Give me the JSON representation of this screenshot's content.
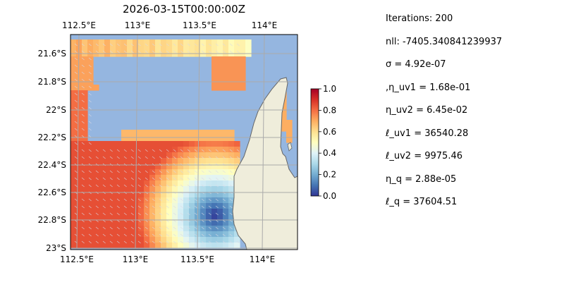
{
  "title": "2026-03-15T00:00:00Z",
  "map": {
    "lon_ticks": [
      "112.5°E",
      "113°E",
      "113.5°E",
      "114°E"
    ],
    "lat_ticks": [
      "21.6°S",
      "21.8°S",
      "22°S",
      "22.2°S",
      "22.4°S",
      "22.6°S",
      "22.8°S",
      "23°S"
    ],
    "colors": {
      "ocean": "#95b6e0",
      "land": "#efeddb",
      "coast": "#666666",
      "grid": "#aaaaaa"
    }
  },
  "colorbar": {
    "ticks": [
      "0.0",
      "0.2",
      "0.4",
      "0.6",
      "0.8",
      "1.0"
    ],
    "colormap": "RdYlBu_r"
  },
  "stats": [
    "Iterations: 200",
    "nll: -7405.340841239937",
    "σ = 4.92e-07",
    ",η_uv1 = 1.68e-01",
    "η_uv2 = 6.45e-02",
    "ℓ_uv1 = 36540.28",
    "ℓ_uv2 = 9975.46",
    "η_q = 2.88e-05",
    "ℓ_q = 37604.51"
  ]
}
